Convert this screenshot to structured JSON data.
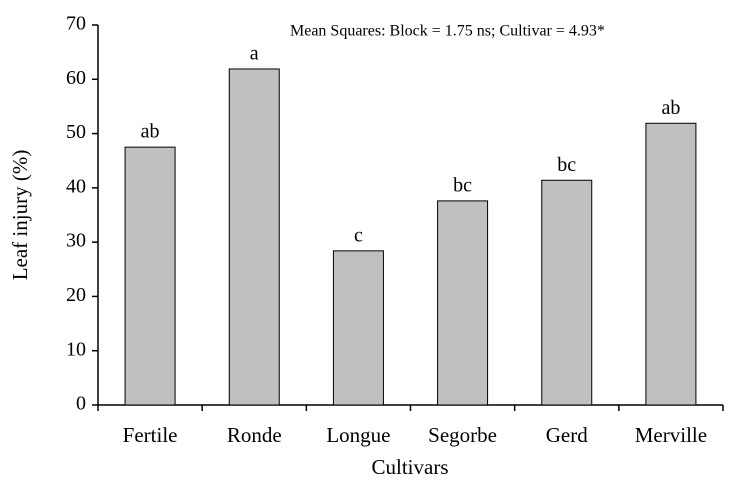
{
  "chart_data": {
    "type": "bar",
    "annotation": "Mean Squares: Block = 1.75 ns; Cultivar = 4.93*",
    "x_label": "Cultivars",
    "y_label": "Leaf injury (%)",
    "categories": [
      "Fertile",
      "Ronde",
      "Longue",
      "Segorbe",
      "Gerd",
      "Merville"
    ],
    "values": [
      47.5,
      61.9,
      28.4,
      37.6,
      41.4,
      51.9
    ],
    "letters": [
      "ab",
      "a",
      "c",
      "bc",
      "bc",
      "ab"
    ],
    "color": "#c0c0c0",
    "ylim": [
      0,
      70
    ],
    "yticks": [
      0,
      10,
      20,
      30,
      40,
      50,
      60,
      70
    ],
    "grid": false
  }
}
